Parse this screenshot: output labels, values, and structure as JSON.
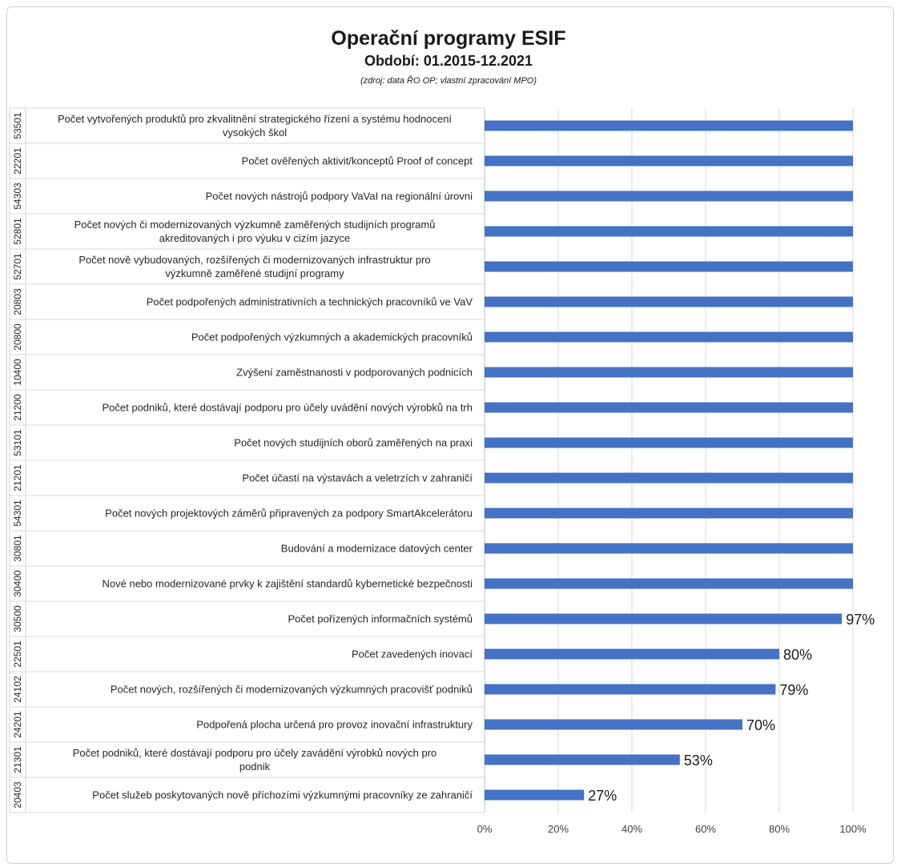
{
  "chart_data": {
    "type": "bar",
    "orientation": "horizontal",
    "title": "Operační programy ESIF",
    "subtitle": "Období: 01.2015-12.2021",
    "source": "(zdroj: data ŘO OP; vlastní zpracování MPO)",
    "xlim": [
      0,
      100
    ],
    "x_ticks": [
      "0%",
      "20%",
      "40%",
      "60%",
      "80%",
      "100%"
    ],
    "grid": "vertical",
    "bar_color": "#4472c4",
    "categories": [
      {
        "code": "53501",
        "label": [
          "Počet vytvořených produktů pro zkvalitnění strategického řízení a systému hodnocení",
          "vysokých škol"
        ],
        "value": 100,
        "value_label": ""
      },
      {
        "code": "22201",
        "label": [
          "Počet ověřených aktivit/konceptů Proof of concept"
        ],
        "value": 100,
        "value_label": ""
      },
      {
        "code": "54303",
        "label": [
          "Počet nových nástrojů podpory VaVaI na regionální úrovni"
        ],
        "value": 100,
        "value_label": ""
      },
      {
        "code": "52801",
        "label": [
          "Počet nových či modernizovaných výzkumně zaměřených studijních programů",
          "akreditovaných i pro výuku v cizím jazyce"
        ],
        "value": 100,
        "value_label": ""
      },
      {
        "code": "52701",
        "label": [
          "Počet nově vybudovaných, rozšířených či modernizovaných infrastruktur pro",
          "výzkumně zaměřené studijní programy"
        ],
        "value": 100,
        "value_label": ""
      },
      {
        "code": "20803",
        "label": [
          "Počet podpořených administrativních a technických pracovníků ve VaV"
        ],
        "value": 100,
        "value_label": ""
      },
      {
        "code": "20800",
        "label": [
          "Počet podpořených výzkumných a akademických pracovníků"
        ],
        "value": 100,
        "value_label": ""
      },
      {
        "code": "10400",
        "label": [
          "Zvýšení zaměstnanosti v podporovaných podnicích"
        ],
        "value": 100,
        "value_label": ""
      },
      {
        "code": "21200",
        "label": [
          "Počet podniků, které dostávají podporu pro účely uvádění nových výrobků na trh"
        ],
        "value": 100,
        "value_label": ""
      },
      {
        "code": "53101",
        "label": [
          "Počet nových studijních oborů zaměřených na praxi"
        ],
        "value": 100,
        "value_label": ""
      },
      {
        "code": "21201",
        "label": [
          "Počet účastí na výstavách a veletrzích v zahraničí"
        ],
        "value": 100,
        "value_label": ""
      },
      {
        "code": "54301",
        "label": [
          "Počet nových projektových záměrů připravených za podpory SmartAkcelerátoru"
        ],
        "value": 100,
        "value_label": ""
      },
      {
        "code": "30801",
        "label": [
          "Budování a modernizace datových center"
        ],
        "value": 100,
        "value_label": ""
      },
      {
        "code": "30400",
        "label": [
          "Nové nebo modernizované prvky k zajištění standardů kybernetické bezpečnosti"
        ],
        "value": 100,
        "value_label": ""
      },
      {
        "code": "30500",
        "label": [
          "Počet pořízených informačních systémů"
        ],
        "value": 97,
        "value_label": "97%"
      },
      {
        "code": "22501",
        "label": [
          "Počet zavedených inovací"
        ],
        "value": 80,
        "value_label": "80%"
      },
      {
        "code": "24102",
        "label": [
          "Počet nových, rozšířených či modernizovaných výzkumných pracovišť podniků"
        ],
        "value": 79,
        "value_label": "79%"
      },
      {
        "code": "24201",
        "label": [
          "Podpořená plocha určená pro provoz inovační infrastruktury"
        ],
        "value": 70,
        "value_label": "70%"
      },
      {
        "code": "21301",
        "label": [
          "Počet podniků, které dostávají podporu pro účely zavádění výrobků nových pro",
          "podnik"
        ],
        "value": 53,
        "value_label": "53%"
      },
      {
        "code": "20403",
        "label": [
          "Počet služeb poskytovaných nově příchozími výzkumnými pracovníky ze zahraničí"
        ],
        "value": 27,
        "value_label": "27%"
      }
    ]
  }
}
